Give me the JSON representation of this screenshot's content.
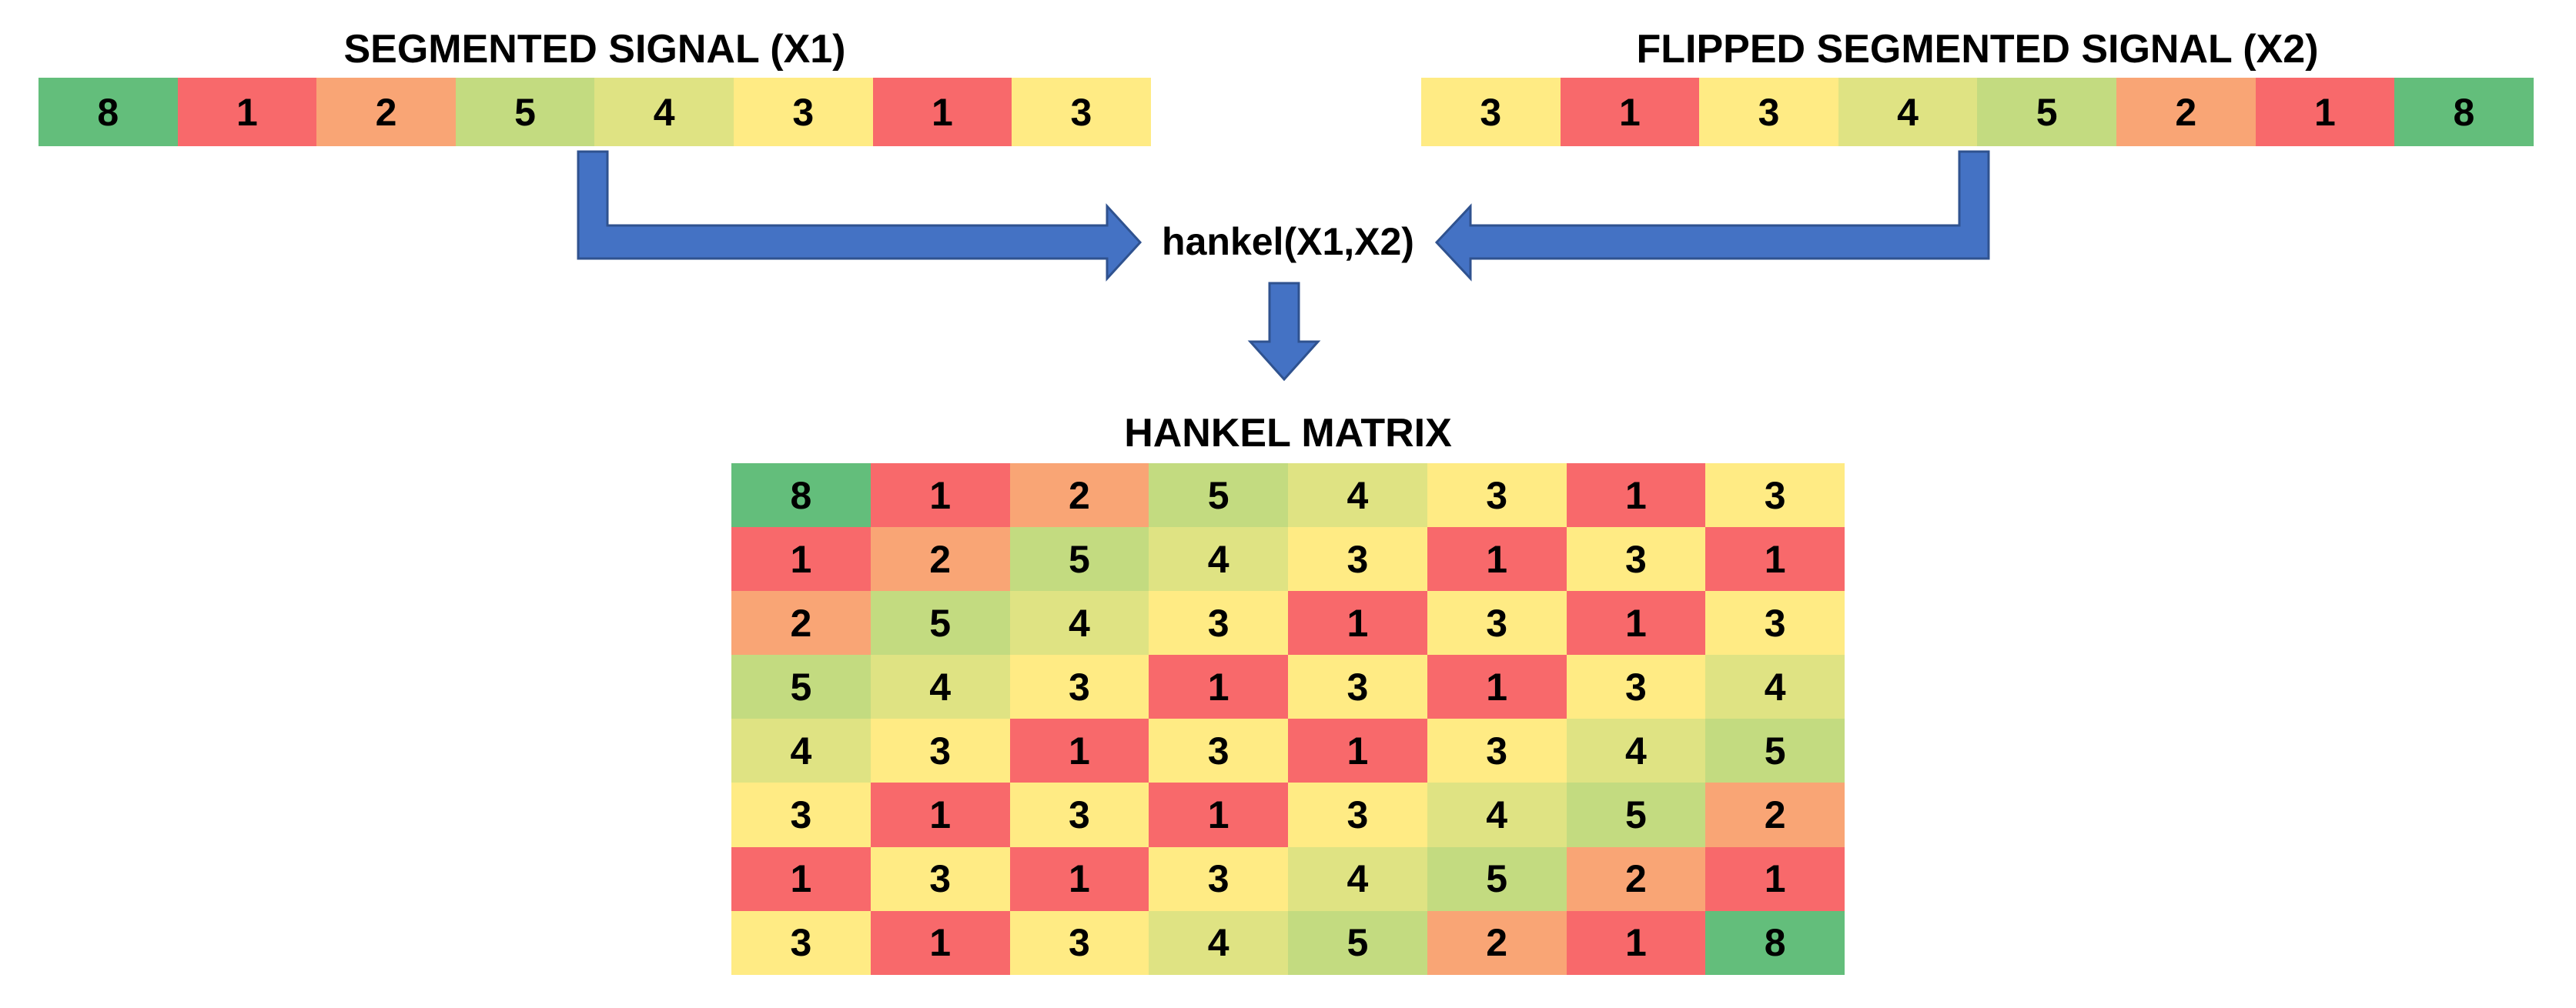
{
  "x1": {
    "title": "SEGMENTED SIGNAL (X1)",
    "values": [
      8,
      1,
      2,
      5,
      4,
      3,
      1,
      3
    ]
  },
  "x2": {
    "title": "FLIPPED SEGMENTED SIGNAL (X2)",
    "values": [
      3,
      1,
      3,
      4,
      5,
      2,
      1,
      8
    ]
  },
  "operation": {
    "label": "hankel(X1,X2)"
  },
  "hankel": {
    "title": "HANKEL MATRIX",
    "rows": [
      [
        8,
        1,
        2,
        5,
        4,
        3,
        1,
        3
      ],
      [
        1,
        2,
        5,
        4,
        3,
        1,
        3,
        1
      ],
      [
        2,
        5,
        4,
        3,
        1,
        3,
        1,
        3
      ],
      [
        5,
        4,
        3,
        1,
        3,
        1,
        3,
        4
      ],
      [
        4,
        3,
        1,
        3,
        1,
        3,
        4,
        5
      ],
      [
        3,
        1,
        3,
        1,
        3,
        4,
        5,
        2
      ],
      [
        1,
        3,
        1,
        3,
        4,
        5,
        2,
        1
      ],
      [
        3,
        1,
        3,
        4,
        5,
        2,
        1,
        8
      ]
    ]
  },
  "value_colors": {
    "1": "#F8696B",
    "2": "#F9A575",
    "3": "#FFEB84",
    "4": "#DFE383",
    "5": "#C3DB80",
    "8": "#63BE7B"
  },
  "arrow_color": "#4472C4",
  "arrow_edge_color": "#2F528F"
}
